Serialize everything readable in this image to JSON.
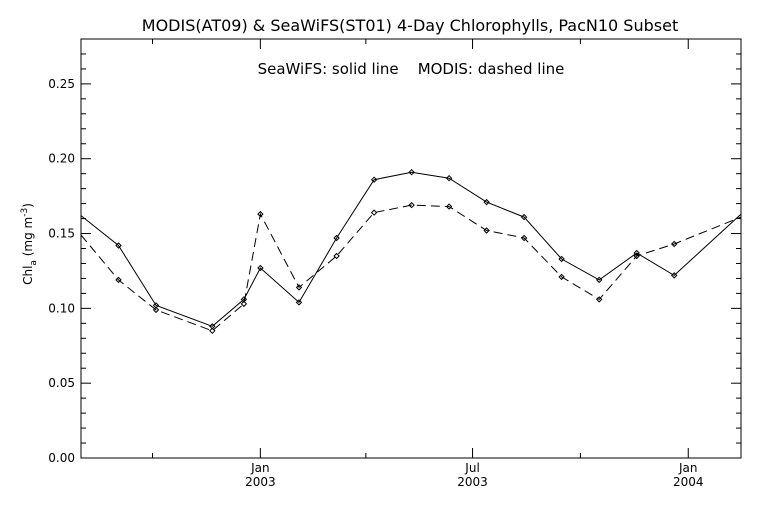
{
  "chart_data": {
    "type": "line",
    "title": "MODIS(AT09) & SeaWiFS(ST01) 4-Day Chlorophylls, PacN10 Subset",
    "annotation": "SeaWiFS: solid line    MODIS: dashed line",
    "ylabel": {
      "main": "Chl",
      "sub": "a",
      "unit_open": " (mg m",
      "sup": "-3",
      "unit_close": ")"
    },
    "xlabel": "",
    "ylim": [
      0.0,
      0.28
    ],
    "xlim": [
      "2002-08-01",
      "2004-02-15"
    ],
    "y_ticks": [
      "0.00",
      "0.05",
      "0.10",
      "0.15",
      "0.20",
      "0.25"
    ],
    "x_ticks": [
      {
        "date": "2003-01-01",
        "line1": "Jan",
        "line2": "2003"
      },
      {
        "date": "2003-07-01",
        "line1": "Jul",
        "line2": "2003"
      },
      {
        "date": "2004-01-01",
        "line1": "Jan",
        "line2": "2004"
      }
    ],
    "grid": false,
    "series": [
      {
        "name": "SeaWiFS",
        "style": "solid",
        "color": "#000000",
        "x": [
          "2002-08-01",
          "2002-09-02",
          "2002-10-04",
          "2002-11-21",
          "2002-12-18",
          "2003-01-01",
          "2003-02-03",
          "2003-03-07",
          "2003-04-08",
          "2003-05-10",
          "2003-06-11",
          "2003-07-13",
          "2003-08-14",
          "2003-09-15",
          "2003-10-17",
          "2003-11-18",
          "2003-12-20",
          "2004-02-15"
        ],
        "y": [
          0.162,
          0.142,
          0.102,
          0.088,
          0.106,
          0.127,
          0.104,
          0.147,
          0.186,
          0.191,
          0.187,
          0.171,
          0.161,
          0.133,
          0.119,
          0.137,
          0.122,
          0.163
        ]
      },
      {
        "name": "MODIS",
        "style": "dashed",
        "color": "#000000",
        "x": [
          "2002-08-01",
          "2002-09-02",
          "2002-10-04",
          "2002-11-21",
          "2002-12-18",
          "2003-01-01",
          "2003-02-03",
          "2003-03-07",
          "2003-04-08",
          "2003-05-10",
          "2003-06-11",
          "2003-07-13",
          "2003-08-14",
          "2003-09-15",
          "2003-10-17",
          "2003-11-18",
          "2003-12-20",
          "2004-02-15"
        ],
        "y": [
          0.149,
          0.119,
          0.099,
          0.085,
          0.103,
          0.163,
          0.114,
          0.135,
          0.164,
          0.169,
          0.168,
          0.152,
          0.147,
          0.121,
          0.106,
          0.135,
          0.143,
          0.161
        ]
      }
    ]
  }
}
